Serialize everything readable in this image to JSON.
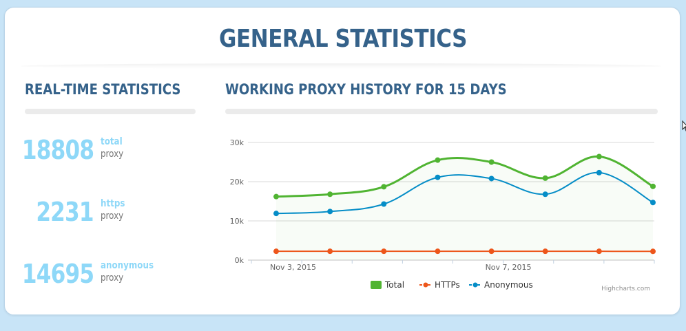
{
  "page": {
    "title": "GENERAL STATISTICS"
  },
  "realtime": {
    "title": "REAL-TIME STATISTICS",
    "stats": [
      {
        "value": "18808",
        "kind": "total",
        "unit": "proxy"
      },
      {
        "value": "2231",
        "kind": "https",
        "unit": "proxy"
      },
      {
        "value": "14695",
        "kind": "anonymous",
        "unit": "proxy"
      }
    ]
  },
  "history": {
    "title": "WORKING PROXY HISTORY FOR 15 DAYS",
    "credits": "Highcharts.com"
  },
  "chart_data": {
    "type": "line",
    "title": "WORKING PROXY HISTORY FOR 15 DAYS",
    "ylim": [
      0,
      30000
    ],
    "yticks": [
      0,
      10000,
      20000,
      30000
    ],
    "ytick_labels": [
      "0k",
      "10k",
      "20k",
      "30k"
    ],
    "x": [
      0,
      1,
      2,
      3,
      4,
      5,
      6,
      7
    ],
    "xtick_labels": [
      {
        "pos": 0,
        "label": "Nov 3, 2015"
      },
      {
        "pos": 4,
        "label": "Nov 7, 2015"
      }
    ],
    "series": [
      {
        "name": "Total",
        "color": "#50b432",
        "values": [
          16200,
          16800,
          18700,
          25500,
          25000,
          20900,
          26400,
          18800
        ]
      },
      {
        "name": "HTTPs",
        "color": "#ed561b",
        "values": [
          2250,
          2250,
          2250,
          2250,
          2250,
          2250,
          2250,
          2231
        ]
      },
      {
        "name": "Anonymous",
        "color": "#058dc7",
        "values": [
          11900,
          12400,
          14300,
          21100,
          20800,
          16800,
          22300,
          14695
        ]
      }
    ],
    "legend": "bottom-center"
  }
}
